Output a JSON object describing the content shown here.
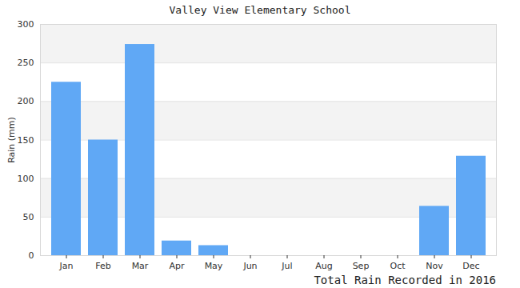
{
  "chart_data": {
    "type": "bar",
    "title": "Valley View Elementary School",
    "caption": "Total Rain Recorded in 2016",
    "y_label": "Rain (mm)",
    "categories": [
      "Jan",
      "Feb",
      "Mar",
      "Apr",
      "May",
      "Jun",
      "Jul",
      "Aug",
      "Sep",
      "Oct",
      "Nov",
      "Dec"
    ],
    "values": [
      225,
      150,
      274,
      19,
      13,
      0,
      0,
      0,
      0,
      0,
      64,
      129
    ],
    "color": "#60a8f5",
    "ylim": [
      0,
      300
    ],
    "yticks": [
      0,
      50,
      100,
      150,
      200,
      250,
      300
    ],
    "grid": true
  }
}
